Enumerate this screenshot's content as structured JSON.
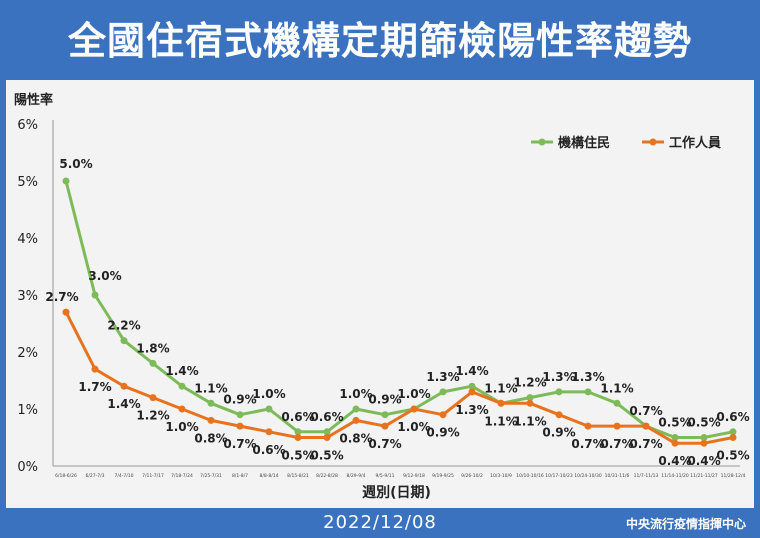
{
  "header": {
    "title": "全國住宿式機構定期篩檢陽性率趨勢"
  },
  "footer": {
    "date": "2022/12/08",
    "org": "中央流行疫情指揮中心"
  },
  "chart_data": {
    "type": "line",
    "ylabel": "陽性率",
    "xlabel": "週別(日期)",
    "ylim": [
      0,
      6
    ],
    "yticks": [
      "0%",
      "1%",
      "2%",
      "3%",
      "4%",
      "5%",
      "6%"
    ],
    "legend_position": "top-right",
    "grid": false,
    "categories": [
      "6/18-6/26",
      "6/27-7/3",
      "7/4-7/10",
      "7/11-7/17",
      "7/18-7/24",
      "7/25-7/31",
      "8/1-8/7",
      "8/8-8/14",
      "8/15-8/21",
      "8/22-8/28",
      "8/29-9/4",
      "9/5-9/11",
      "9/12-9/18",
      "9/19-9/25",
      "9/26-10/2",
      "10/3-10/9",
      "10/10-10/16",
      "10/17-10/23",
      "10/24-10/30",
      "10/31-11/6",
      "11/7-11/13",
      "11/14-11/20",
      "11/21-11/27",
      "11/28-12/4"
    ],
    "series": [
      {
        "name": "機構住民",
        "color": "#7dbb5a",
        "values": [
          5.0,
          3.0,
          2.2,
          1.8,
          1.4,
          1.1,
          0.9,
          1.0,
          0.6,
          0.6,
          1.0,
          0.9,
          1.0,
          1.3,
          1.4,
          1.1,
          1.2,
          1.3,
          1.3,
          1.1,
          0.7,
          0.5,
          0.5,
          0.6
        ],
        "labels": [
          "5.0%",
          "3.0%",
          "2.2%",
          "1.8%",
          "1.4%",
          "1.1%",
          "0.9%",
          "1.0%",
          "0.6%",
          "0.6%",
          "1.0%",
          "0.9%",
          "1.0%",
          "1.3%",
          "1.4%",
          "1.1%",
          "1.2%",
          "1.3%",
          "1.3%",
          "1.1%",
          "0.7%",
          "0.5%",
          "0.5%",
          "0.6%"
        ]
      },
      {
        "name": "工作人員",
        "color": "#e8731e",
        "values": [
          2.7,
          1.7,
          1.4,
          1.2,
          1.0,
          0.8,
          0.7,
          0.6,
          0.5,
          0.5,
          0.8,
          0.7,
          1.0,
          0.9,
          1.3,
          1.1,
          1.1,
          0.9,
          0.7,
          0.7,
          0.7,
          0.4,
          0.4,
          0.5
        ],
        "labels": [
          "2.7%",
          "1.7%",
          "1.4%",
          "1.2%",
          "1.0%",
          "0.8%",
          "0.7%",
          "0.6%",
          "0.5%",
          "0.5%",
          "0.8%",
          "0.7%",
          "1.0%",
          "0.9%",
          "1.3%",
          "1.1%",
          "1.1%",
          "0.9%",
          "0.7%",
          "0.7%",
          "0.7%",
          "0.4%",
          "0.4%",
          "0.5%"
        ]
      }
    ]
  }
}
